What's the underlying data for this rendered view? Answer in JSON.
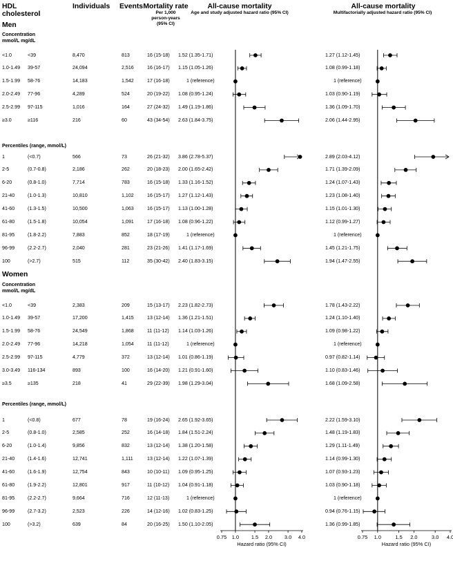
{
  "headers": {
    "hdl": "HDL cholesterol",
    "individuals": "Individuals",
    "events": "Events",
    "mortality_rate": "Mortality rate",
    "mortality_rate_sub": "Per 1,000 person-years (95% CI)",
    "allcause_left": "All-cause mortality",
    "allcause_left_sub": "Age and study adjusted hazard ratio (95% CI)",
    "allcause_right": "All-cause mortality",
    "allcause_right_sub": "Multifactorially adjusted hazard ratio (95% CI)"
  },
  "sections": [
    {
      "title": "Men",
      "groups": [
        {
          "heading": [
            "Concentration",
            "mmol/L    mg/dL"
          ],
          "rows": [
            {
              "c1": "<1.0",
              "c2": "<39",
              "ind": "8,470",
              "ev": "813",
              "mr": "16 (15-18)",
              "hr1": "1.52 (1.35-1.71)",
              "hr2": "1.27 (1.12-1.45)",
              "p1": [
                1.52,
                1.35,
                1.71
              ],
              "p2": [
                1.27,
                1.12,
                1.45
              ]
            },
            {
              "c1": "1.0-1.49",
              "c2": "39-57",
              "ind": "24,094",
              "ev": "2,516",
              "mr": "16 (16-17)",
              "hr1": "1.15 (1.05-1.26)",
              "hr2": "1.08 (0.99-1.18)",
              "p1": [
                1.15,
                1.05,
                1.26
              ],
              "p2": [
                1.08,
                0.99,
                1.18
              ]
            },
            {
              "c1": "1.5-1.99",
              "c2": "58-76",
              "ind": "14,183",
              "ev": "1,542",
              "mr": "17 (16-18)",
              "hr1": "1 (reference)",
              "hr2": "1 (reference)",
              "p1": [
                1,
                1,
                1
              ],
              "p2": [
                1,
                1,
                1
              ]
            },
            {
              "c1": "2.0-2.49",
              "c2": "77-96",
              "ind": "4,289",
              "ev": "524",
              "mr": "20 (19-22)",
              "hr1": "1.08 (0.95-1.24)",
              "hr2": "1.03 (0.90-1.19)",
              "p1": [
                1.08,
                0.95,
                1.24
              ],
              "p2": [
                1.03,
                0.9,
                1.19
              ]
            },
            {
              "c1": "2.5-2.99",
              "c2": "97-115",
              "ind": "1,016",
              "ev": "164",
              "mr": "27 (24-32)",
              "hr1": "1.49 (1.19-1.86)",
              "hr2": "1.36 (1.09-1.70)",
              "p1": [
                1.49,
                1.19,
                1.86
              ],
              "p2": [
                1.36,
                1.09,
                1.7
              ]
            },
            {
              "c1": "≥3.0",
              "c2": "≥116",
              "ind": "216",
              "ev": "60",
              "mr": "43 (34-54)",
              "hr1": "2.63 (1.84-3.75)",
              "hr2": "2.06 (1.44-2.95)",
              "p1": [
                2.63,
                1.84,
                3.75
              ],
              "p2": [
                2.06,
                1.44,
                2.95
              ]
            }
          ]
        },
        {
          "heading": [
            "Percentiles (range, mmol/L)"
          ],
          "rows": [
            {
              "c1": "1",
              "c2": "(<0.7)",
              "ind": "566",
              "ev": "73",
              "mr": "26 (21-32)",
              "hr1": "3.86 (2.78-5.37)",
              "hr2": "2.89 (2.03-4.12)",
              "p1": [
                3.86,
                2.78,
                5.37
              ],
              "p2": [
                2.89,
                2.03,
                4.12
              ]
            },
            {
              "c1": "2-5",
              "c2": "(0.7-0.8)",
              "ind": "2,186",
              "ev": "262",
              "mr": "20 (18-23)",
              "hr1": "2.00 (1.65-2.42)",
              "hr2": "1.71 (1.39-2.09)",
              "p1": [
                2.0,
                1.65,
                2.42
              ],
              "p2": [
                1.71,
                1.39,
                2.09
              ]
            },
            {
              "c1": "6-20",
              "c2": "(0.8-1.0)",
              "ind": "7,714",
              "ev": "783",
              "mr": "16 (15-18)",
              "hr1": "1.33 (1.16-1.52)",
              "hr2": "1.24 (1.07-1.43)",
              "p1": [
                1.33,
                1.16,
                1.52
              ],
              "p2": [
                1.24,
                1.07,
                1.43
              ]
            },
            {
              "c1": "21-40",
              "c2": "(1.0-1.3)",
              "ind": "10,810",
              "ev": "1,102",
              "mr": "16 (15-17)",
              "hr1": "1.27 (1.12-1.43)",
              "hr2": "1.23 (1.08-1.40)",
              "p1": [
                1.27,
                1.12,
                1.43
              ],
              "p2": [
                1.23,
                1.08,
                1.4
              ]
            },
            {
              "c1": "41-60",
              "c2": "(1.3-1.5)",
              "ind": "10,500",
              "ev": "1,063",
              "mr": "16 (15-17)",
              "hr1": "1.13 (1.00-1.28)",
              "hr2": "1.15 (1.01-1.30)",
              "p1": [
                1.13,
                1.0,
                1.28
              ],
              "p2": [
                1.15,
                1.01,
                1.3
              ]
            },
            {
              "c1": "61-80",
              "c2": "(1.5-1.8)",
              "ind": "10,054",
              "ev": "1,091",
              "mr": "17 (16-18)",
              "hr1": "1.08 (0.96-1.22)",
              "hr2": "1.12 (0.99-1.27)",
              "p1": [
                1.08,
                0.96,
                1.22
              ],
              "p2": [
                1.12,
                0.99,
                1.27
              ]
            },
            {
              "c1": "81-95",
              "c2": "(1.8-2.2)",
              "ind": "7,883",
              "ev": "852",
              "mr": "18 (17-19)",
              "hr1": "1 (reference)",
              "hr2": "1 (reference)",
              "p1": [
                1,
                1,
                1
              ],
              "p2": [
                1,
                1,
                1
              ]
            },
            {
              "c1": "96-99",
              "c2": "(2.2-2.7)",
              "ind": "2,040",
              "ev": "281",
              "mr": "23 (21-26)",
              "hr1": "1.41 (1.17-1.69)",
              "hr2": "1.45 (1.21-1.75)",
              "p1": [
                1.41,
                1.17,
                1.69
              ],
              "p2": [
                1.45,
                1.21,
                1.75
              ]
            },
            {
              "c1": "100",
              "c2": "(>2.7)",
              "ind": "515",
              "ev": "112",
              "mr": "35 (30-42)",
              "hr1": "2.40 (1.83-3.15)",
              "hr2": "1.94 (1.47-2.55)",
              "p1": [
                2.4,
                1.83,
                3.15
              ],
              "p2": [
                1.94,
                1.47,
                2.55
              ]
            }
          ]
        }
      ]
    },
    {
      "title": "Women",
      "groups": [
        {
          "heading": [
            "Concentration",
            "mmol/L    mg/dL"
          ],
          "rows": [
            {
              "c1": "<1.0",
              "c2": "<39",
              "ind": "2,383",
              "ev": "209",
              "mr": "15 (13-17)",
              "hr1": "2.23 (1.82-2.73)",
              "hr2": "1.78 (1.43-2.22)",
              "p1": [
                2.23,
                1.82,
                2.73
              ],
              "p2": [
                1.78,
                1.43,
                2.22
              ]
            },
            {
              "c1": "1.0-1.49",
              "c2": "39-57",
              "ind": "17,200",
              "ev": "1,415",
              "mr": "13 (12-14)",
              "hr1": "1.36 (1.21-1.51)",
              "hr2": "1.24 (1.10-1.40)",
              "p1": [
                1.36,
                1.21,
                1.51
              ],
              "p2": [
                1.24,
                1.1,
                1.4
              ]
            },
            {
              "c1": "1.5-1.99",
              "c2": "58-76",
              "ind": "24,549",
              "ev": "1,868",
              "mr": "11 (11-12)",
              "hr1": "1.14 (1.03-1.26)",
              "hr2": "1.09 (0.98-1.22)",
              "p1": [
                1.14,
                1.03,
                1.26
              ],
              "p2": [
                1.09,
                0.98,
                1.22
              ]
            },
            {
              "c1": "2.0-2.49",
              "c2": "77-96",
              "ind": "14,218",
              "ev": "1,054",
              "mr": "11 (11-12)",
              "hr1": "1 (reference)",
              "hr2": "1 (reference)",
              "p1": [
                1,
                1,
                1
              ],
              "p2": [
                1,
                1,
                1
              ]
            },
            {
              "c1": "2.5-2.99",
              "c2": "97-115",
              "ind": "4,779",
              "ev": "372",
              "mr": "13 (12-14)",
              "hr1": "1.01 (0.86-1.19)",
              "hr2": "0.97 (0.82-1.14)",
              "p1": [
                1.01,
                0.86,
                1.19
              ],
              "p2": [
                0.97,
                0.82,
                1.14
              ]
            },
            {
              "c1": "3.0-3.49",
              "c2": "116-134",
              "ind": "893",
              "ev": "100",
              "mr": "16 (14-20)",
              "hr1": "1.21 (0.91-1.60)",
              "hr2": "1.10 (0.83-1.46)",
              "p1": [
                1.21,
                0.91,
                1.6
              ],
              "p2": [
                1.1,
                0.83,
                1.46
              ]
            },
            {
              "c1": "≥3.5",
              "c2": "≥135",
              "ind": "218",
              "ev": "41",
              "mr": "29 (22-39)",
              "hr1": "1.98 (1.29-3.04)",
              "hr2": "1.68 (1.09-2.58)",
              "p1": [
                1.98,
                1.29,
                3.04
              ],
              "p2": [
                1.68,
                1.09,
                2.58
              ]
            }
          ]
        },
        {
          "heading": [
            "Percentiles (range, mmol/L)"
          ],
          "rows": [
            {
              "c1": "1",
              "c2": "(<0.8)",
              "ind": "677",
              "ev": "78",
              "mr": "19 (16-24)",
              "hr1": "2.65 (1.92-3.65)",
              "hr2": "2.22 (1.59-3.10)",
              "p1": [
                2.65,
                1.92,
                3.65
              ],
              "p2": [
                2.22,
                1.59,
                3.1
              ]
            },
            {
              "c1": "2-5",
              "c2": "(0.8-1.0)",
              "ind": "2,585",
              "ev": "252",
              "mr": "16 (14-18)",
              "hr1": "1.84 (1.51-2.24)",
              "hr2": "1.48 (1.19-1.83)",
              "p1": [
                1.84,
                1.51,
                2.24
              ],
              "p2": [
                1.48,
                1.19,
                1.83
              ]
            },
            {
              "c1": "6-20",
              "c2": "(1.0-1.4)",
              "ind": "9,856",
              "ev": "832",
              "mr": "13 (12-14)",
              "hr1": "1.38 (1.20-1.58)",
              "hr2": "1.29 (1.11-1.49)",
              "p1": [
                1.38,
                1.2,
                1.58
              ],
              "p2": [
                1.29,
                1.11,
                1.49
              ]
            },
            {
              "c1": "21-40",
              "c2": "(1.4-1.6)",
              "ind": "12,741",
              "ev": "1,111",
              "mr": "13 (12-14)",
              "hr1": "1.22 (1.07-1.39)",
              "hr2": "1.14 (0.99-1.30)",
              "p1": [
                1.22,
                1.07,
                1.39
              ],
              "p2": [
                1.14,
                0.99,
                1.3
              ]
            },
            {
              "c1": "41-60",
              "c2": "(1.6-1.9)",
              "ind": "12,754",
              "ev": "843",
              "mr": "10 (10-11)",
              "hr1": "1.09 (0.95-1.25)",
              "hr2": "1.07 (0.93-1.23)",
              "p1": [
                1.09,
                0.95,
                1.25
              ],
              "p2": [
                1.07,
                0.93,
                1.23
              ]
            },
            {
              "c1": "61-80",
              "c2": "(1.9-2.2)",
              "ind": "12,801",
              "ev": "917",
              "mr": "11 (10-12)",
              "hr1": "1.04 (0.91-1.18)",
              "hr2": "1.03 (0.90-1.18)",
              "p1": [
                1.04,
                0.91,
                1.18
              ],
              "p2": [
                1.03,
                0.9,
                1.18
              ]
            },
            {
              "c1": "81-95",
              "c2": "(2.2-2.7)",
              "ind": "9,664",
              "ev": "716",
              "mr": "12 (11-13)",
              "hr1": "1 (reference)",
              "hr2": "1 (reference)",
              "p1": [
                1,
                1,
                1
              ],
              "p2": [
                1,
                1,
                1
              ]
            },
            {
              "c1": "96-99",
              "c2": "(2.7-3.2)",
              "ind": "2,523",
              "ev": "226",
              "mr": "14 (12-16)",
              "hr1": "1.02 (0.83-1.25)",
              "hr2": "0.94 (0.76-1.15)",
              "p1": [
                1.02,
                0.83,
                1.25
              ],
              "p2": [
                0.94,
                0.76,
                1.15
              ]
            },
            {
              "c1": "100",
              "c2": "(>3.2)",
              "ind": "639",
              "ev": "84",
              "mr": "20 (16-25)",
              "hr1": "1.50 (1.10-2.05)",
              "hr2": "1.36 (0.99-1.85)",
              "p1": [
                1.5,
                1.1,
                2.05
              ],
              "p2": [
                1.36,
                0.99,
                1.85
              ]
            }
          ]
        }
      ]
    }
  ],
  "axis": {
    "ticks": [
      0.75,
      1.0,
      1.5,
      2.0,
      3.0,
      4.0
    ],
    "tick_labels": [
      "0.75",
      "1.0",
      "1.5",
      "2.0",
      "3.0",
      "4.0"
    ],
    "label": "Hazard ratio (95% CI)",
    "scale": "log",
    "range": [
      0.75,
      4.0
    ],
    "reference": 1.0
  },
  "chart_data": {
    "type": "forest",
    "title": "HDL cholesterol and all-cause mortality",
    "xlabel": "Hazard ratio (95% CI)",
    "xscale": "log",
    "xlim": [
      0.75,
      4.0
    ],
    "panels": [
      "Age and study adjusted hazard ratio (95% CI)",
      "Multifactorially adjusted hazard ratio (95% CI)"
    ],
    "series_note": "Point estimates and 95% CI per row are stored as p1 (age/study adjusted) and p2 (multifactorially adjusted) under sections[].groups[].rows[]; p1 of the first percentile row for men (upper 5.37) exceeds axis and is drawn with an arrow."
  }
}
